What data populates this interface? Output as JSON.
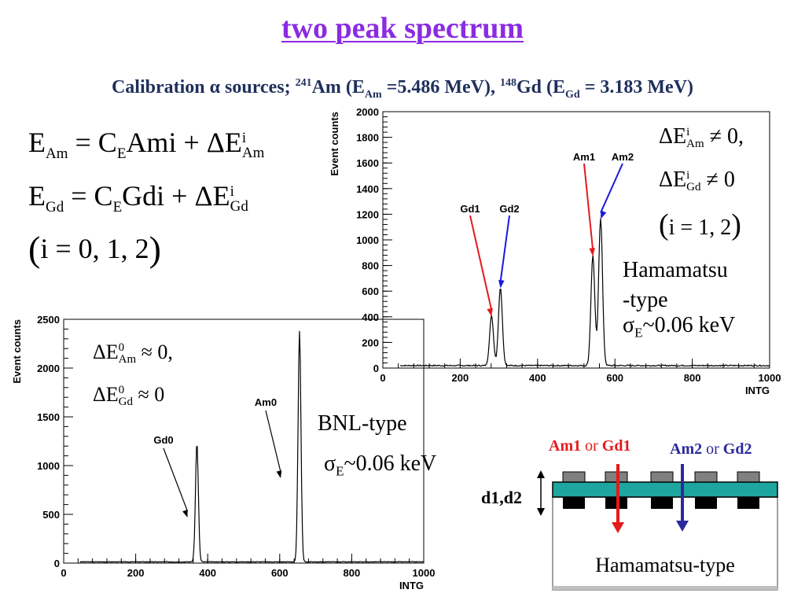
{
  "slide": {
    "title": "two peak spectrum",
    "subtitle": {
      "prefix": "Calibration α sources; ",
      "am_mass": "241",
      "am_text": "Am (E",
      "am_sub": "Am",
      "am_value": " =5.486 MeV), ",
      "gd_mass": "148",
      "gd_text": "Gd (E",
      "gd_sub": "Gd",
      "gd_value": " = 3.183 MeV)"
    }
  },
  "equations": {
    "eq1": {
      "lhs": "E",
      "lhs_sub": "Am",
      "mid": " = C",
      "mid_sub": "E",
      "rhs": "Ami + ΔE",
      "rhs_sup": "i",
      "rhs_sub": "Am"
    },
    "eq2": {
      "lhs": "E",
      "lhs_sub": "Gd",
      "mid": " = C",
      "mid_sub": "E",
      "rhs": "Gdi + ΔE",
      "rhs_sup": "i",
      "rhs_sub": "Gd"
    },
    "eq3": {
      "open": "(",
      "body": "i = 0, 1, 2",
      "close": ")"
    }
  },
  "hamamatsu_conditions": {
    "line1": {
      "d": "ΔE",
      "sup": "i",
      "sub": "Am",
      "rel": " ≠ 0,"
    },
    "line2": {
      "d": "ΔE",
      "sup": "i",
      "sub": "Gd",
      "rel": " ≠ 0"
    },
    "line3": {
      "open": "(",
      "body": "i = 1, 2",
      "close": ")"
    },
    "type_line1": "Hamamatsu",
    "type_line2": "-type",
    "sigma": "σ",
    "sigma_sub": "E",
    "sigma_value": "~0.06 keV"
  },
  "bnl_conditions": {
    "line1": {
      "d": "ΔE",
      "sup": "0",
      "sub": "Am",
      "rel": " ≈ 0,"
    },
    "line2": {
      "d": "ΔE",
      "sup": "0",
      "sub": "Gd",
      "rel": " ≈ 0"
    },
    "type": "BNL-type",
    "sigma": "σ",
    "sigma_sub": "E",
    "sigma_value": "~0.06 keV"
  },
  "diagram": {
    "legend_am1": "Am1",
    "legend_or1": " or ",
    "legend_gd1": "Gd1",
    "legend_am2": "Am2",
    "legend_or2": " or ",
    "legend_gd2": "Gd2",
    "dim_label": "d1,d2",
    "caption": "Hamamatsu-type",
    "colors": {
      "red": "#e41a1c",
      "blue": "#2a2a9c",
      "teal": "#1fa5a0",
      "gray": "#808080"
    }
  },
  "chart_data": [
    {
      "type": "line",
      "xlabel": "INTG",
      "ylabel": "Event counts",
      "xlim": [
        0,
        1000
      ],
      "ylim": [
        0,
        2000
      ],
      "xticks": [
        0,
        200,
        400,
        600,
        800,
        1000
      ],
      "yticks": [
        0,
        200,
        400,
        600,
        800,
        1000,
        1200,
        1400,
        1600,
        1800,
        2000
      ],
      "peaks": [
        {
          "name": "Gd1",
          "x": 281,
          "y": 390,
          "arrow_color": "#e41a1c"
        },
        {
          "name": "Gd2",
          "x": 304,
          "y": 610,
          "arrow_color": "#1a1adb"
        },
        {
          "name": "Am1",
          "x": 543,
          "y": 860,
          "arrow_color": "#e41a1c"
        },
        {
          "name": "Am2",
          "x": 563,
          "y": 1150,
          "arrow_color": "#1a1adb"
        }
      ],
      "baseline": 15
    },
    {
      "type": "line",
      "xlabel": "INTG",
      "ylabel": "Event counts",
      "xlim": [
        0,
        1000
      ],
      "ylim": [
        0,
        2500
      ],
      "xticks": [
        0,
        200,
        400,
        600,
        800,
        1000
      ],
      "yticks": [
        0,
        500,
        1000,
        1500,
        2000,
        2500
      ],
      "peaks": [
        {
          "name": "Gd0",
          "x": 370,
          "y": 1220,
          "arrow_color": "#000000"
        },
        {
          "name": "Am0",
          "x": 655,
          "y": 2370,
          "arrow_color": "#000000"
        }
      ],
      "baseline": 10
    }
  ]
}
